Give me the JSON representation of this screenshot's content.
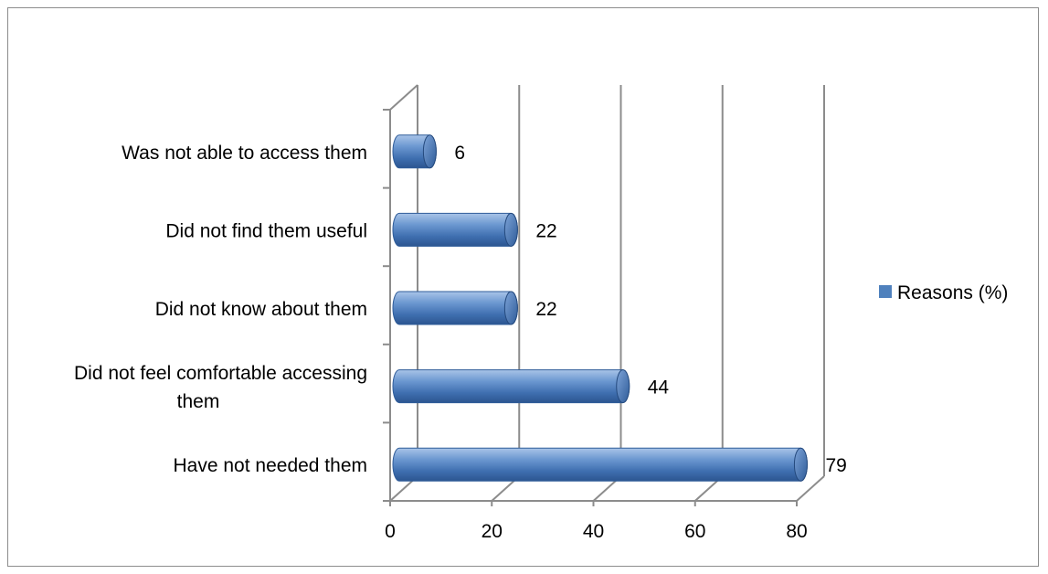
{
  "chart_data": {
    "type": "bar",
    "orientation": "horizontal",
    "style": "3d-cylinder",
    "categories": [
      "Was not able to access them",
      "Did not find them useful",
      "Did not know about them",
      "Did not feel comfortable accessing them",
      "Have not needed them"
    ],
    "category_lines": [
      [
        "Was not able to access them"
      ],
      [
        "Did not find them useful"
      ],
      [
        "Did not know about them"
      ],
      [
        "Did not feel comfortable accessing",
        "them"
      ],
      [
        "Have not needed them"
      ]
    ],
    "series": [
      {
        "name": "Reasons (%)",
        "values": [
          6,
          22,
          22,
          44,
          79
        ],
        "color": "#4f81bd"
      }
    ],
    "xlim": [
      0,
      80
    ],
    "xticks": [
      0,
      20,
      40,
      60,
      80
    ],
    "grid": true,
    "legend": "right",
    "title": "",
    "xlabel": "",
    "ylabel": ""
  }
}
